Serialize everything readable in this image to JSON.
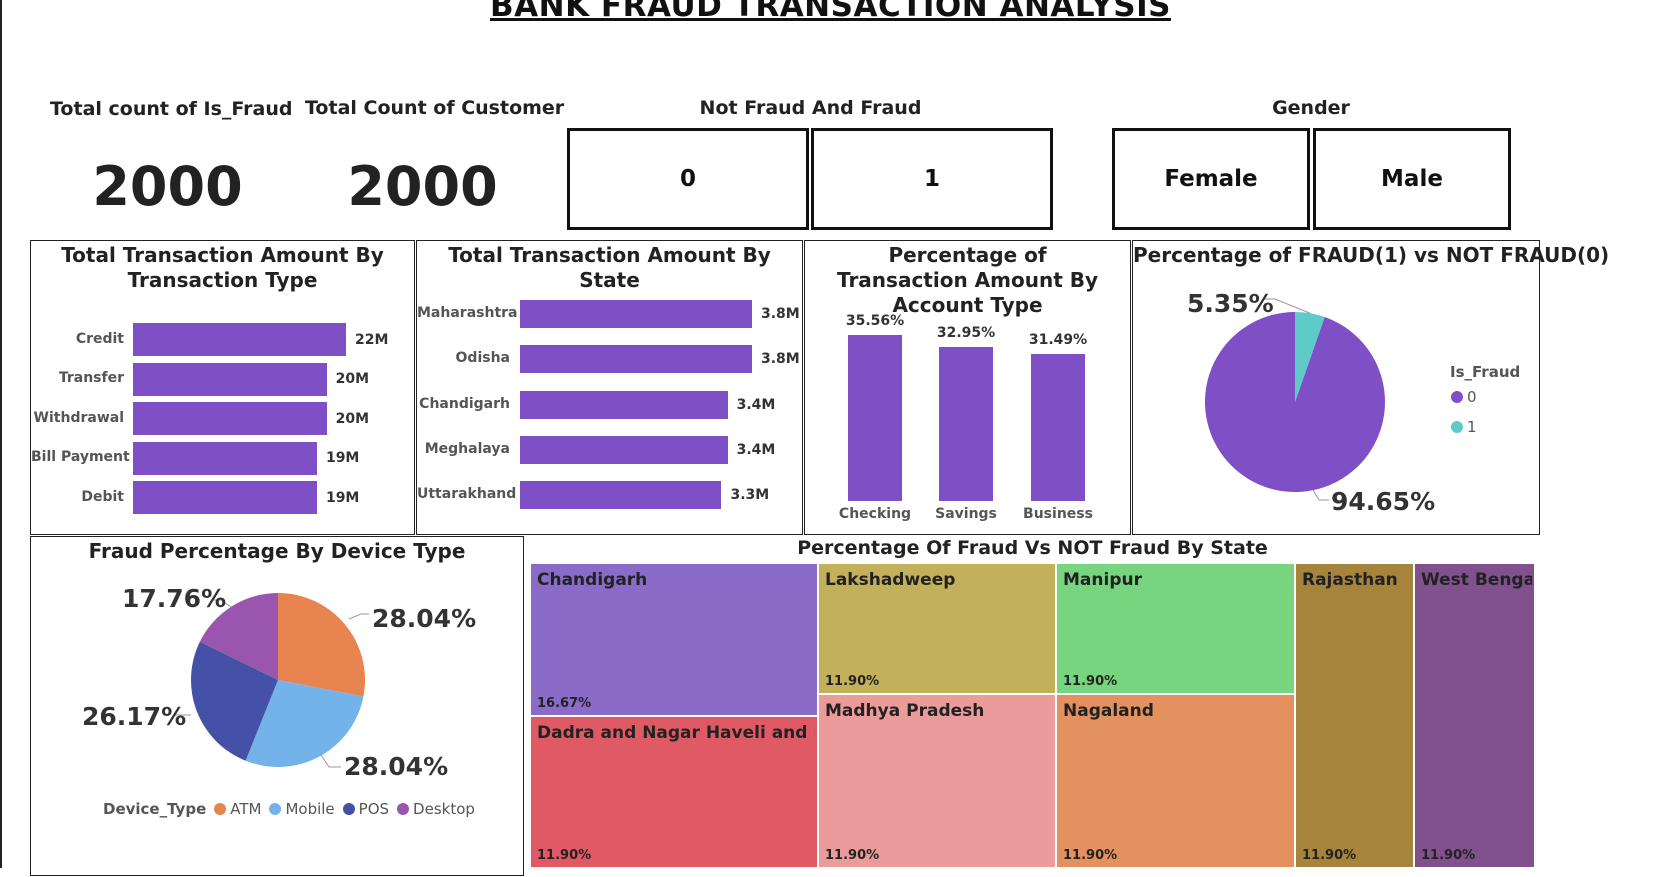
{
  "title": "BANK FRAUD TRANSACTION ANALYSIS",
  "kpis": [
    {
      "label": "Total count of Is_Fraud",
      "value": "2000"
    },
    {
      "label": "Total Count of Customer",
      "value": "2000"
    }
  ],
  "fraud_slicer": {
    "label": "Not Fraud And Fraud",
    "options": [
      "0",
      "1"
    ]
  },
  "gender_slicer": {
    "label": "Gender",
    "options": [
      "Female",
      "Male"
    ]
  },
  "panels": {
    "txn_type_title": "Total Transaction Amount By Transaction Type",
    "state_title": "Total Transaction Amount By State",
    "account_title": "Percentage of Transaction Amount By Account Type",
    "fraud_pie_title": "Percentage of FRAUD(1) vs NOT FRAUD(0)",
    "device_title": "Fraud Percentage By Device Type",
    "treemap_title": "Percentage Of Fraud Vs NOT Fraud By State"
  },
  "chart_data": [
    {
      "type": "bar",
      "orientation": "horizontal",
      "title": "Total Transaction Amount By Transaction Type",
      "categories": [
        "Credit",
        "Transfer",
        "Withdrawal",
        "Bill Payment",
        "Debit"
      ],
      "values": [
        22,
        20,
        20,
        19,
        19
      ],
      "value_labels": [
        "22M",
        "20M",
        "20M",
        "19M",
        "19M"
      ],
      "color": "#7f4fc6"
    },
    {
      "type": "bar",
      "orientation": "horizontal",
      "title": "Total Transaction Amount By State",
      "categories": [
        "Maharashtra",
        "Odisha",
        "Chandigarh",
        "Meghalaya",
        "Uttarakhand"
      ],
      "values": [
        3.8,
        3.8,
        3.4,
        3.4,
        3.3
      ],
      "value_labels": [
        "3.8M",
        "3.8M",
        "3.4M",
        "3.4M",
        "3.3M"
      ],
      "color": "#7f4fc6"
    },
    {
      "type": "bar",
      "orientation": "vertical",
      "title": "Percentage of Transaction Amount By Account Type",
      "categories": [
        "Checking",
        "Savings",
        "Business"
      ],
      "values": [
        35.56,
        32.95,
        31.49
      ],
      "value_labels": [
        "35.56%",
        "32.95%",
        "31.49%"
      ],
      "color": "#7f4fc6"
    },
    {
      "type": "pie",
      "title": "Percentage of FRAUD(1) vs NOT FRAUD(0)",
      "legend_title": "Is_Fraud",
      "legend_position": "right",
      "categories": [
        "0",
        "1"
      ],
      "values": [
        94.65,
        5.35
      ],
      "value_labels": [
        "94.65%",
        "5.35%"
      ],
      "colors": [
        "#7f4fc6",
        "#5ecbc8"
      ]
    },
    {
      "type": "pie",
      "title": "Fraud Percentage By Device Type",
      "legend_title": "Device_Type",
      "legend_position": "bottom",
      "categories": [
        "ATM",
        "Mobile",
        "POS",
        "Desktop"
      ],
      "values": [
        28.04,
        28.04,
        26.17,
        17.76
      ],
      "value_labels": [
        "28.04%",
        "28.04%",
        "26.17%",
        "17.76%"
      ],
      "colors": [
        "#e8844f",
        "#74b3ea",
        "#4451a6",
        "#9a56ae"
      ]
    },
    {
      "type": "treemap",
      "title": "Percentage Of Fraud Vs NOT Fraud By State",
      "categories": [
        "Chandigarh",
        "Dadra and Nagar Haveli and Da...",
        "Lakshadweep",
        "Madhya Pradesh",
        "Manipur",
        "Nagaland",
        "Rajasthan",
        "West Bengal"
      ],
      "values": [
        16.67,
        11.9,
        11.9,
        11.9,
        11.9,
        11.9,
        11.9,
        11.9
      ],
      "value_labels": [
        "16.67%",
        "11.90%",
        "11.90%",
        "11.90%",
        "11.90%",
        "11.90%",
        "11.90%",
        "11.90%"
      ],
      "colors": [
        "#8a6bc8",
        "#e05a66",
        "#c2b05a",
        "#ec9b9b",
        "#77d47f",
        "#e3915f",
        "#a7843b",
        "#80518c"
      ]
    }
  ]
}
